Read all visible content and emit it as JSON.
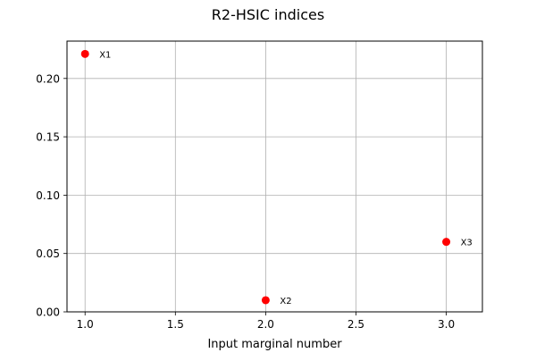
{
  "chart_data": {
    "type": "scatter",
    "title": "R2-HSIC indices",
    "xlabel": "Input marginal number",
    "ylabel": "",
    "xlim": [
      0.9,
      3.2
    ],
    "ylim": [
      0.0,
      0.232
    ],
    "xticks": [
      1.0,
      1.5,
      2.0,
      2.5,
      3.0
    ],
    "xtick_labels": [
      "1.0",
      "1.5",
      "2.0",
      "2.5",
      "3.0"
    ],
    "yticks": [
      0.0,
      0.05,
      0.1,
      0.15,
      0.2
    ],
    "ytick_labels": [
      "0.00",
      "0.05",
      "0.10",
      "0.15",
      "0.20"
    ],
    "grid": true,
    "points": [
      {
        "x": 1,
        "y": 0.221,
        "label": "X1"
      },
      {
        "x": 2,
        "y": 0.01,
        "label": "X2"
      },
      {
        "x": 3,
        "y": 0.06,
        "label": "X3"
      }
    ],
    "marker_color": "#ff0000",
    "grid_color": "#b0b0b0",
    "axis_color": "#000000"
  }
}
